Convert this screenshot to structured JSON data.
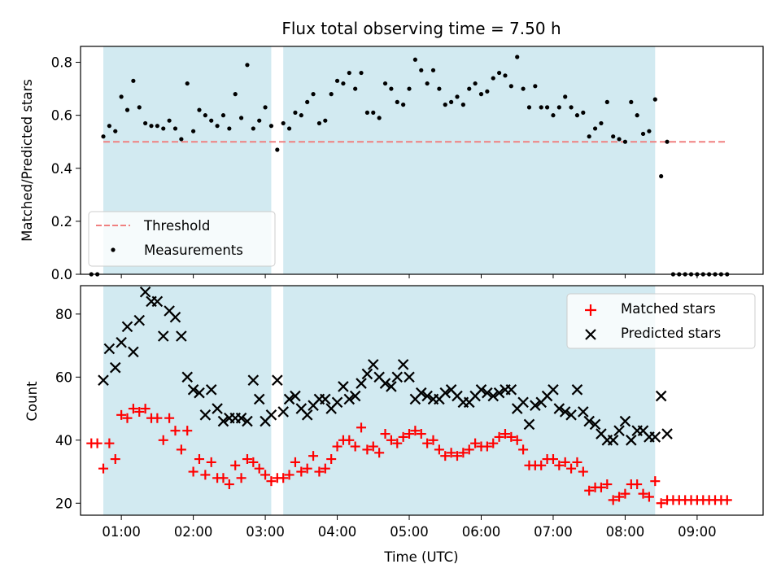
{
  "figure": {
    "title": "Flux total observing time = 7.50 h",
    "xlabel": "Time (UTC)"
  },
  "chart_data": [
    {
      "type": "scatter",
      "name": "ratio",
      "ylabel": "Matched/Predicted stars",
      "xlim": [
        "00:26",
        "09:55"
      ],
      "ylim": [
        0.0,
        0.86
      ],
      "yticks": [
        0.0,
        0.2,
        0.4,
        0.6,
        0.8
      ],
      "threshold": 0.5,
      "shaded_spans": [
        [
          "00:45",
          "03:05"
        ],
        [
          "03:15",
          "08:25"
        ]
      ],
      "legend": {
        "position": "lower-left",
        "entries": [
          "Threshold",
          "Measurements"
        ]
      },
      "colors": {
        "threshold": "#f08080",
        "measurements": "#000000",
        "shade": "#add8e6"
      },
      "x": [
        "00:35",
        "00:40",
        "00:45",
        "00:50",
        "00:55",
        "01:00",
        "01:05",
        "01:10",
        "01:15",
        "01:20",
        "01:25",
        "01:30",
        "01:35",
        "01:40",
        "01:45",
        "01:50",
        "01:55",
        "02:00",
        "02:05",
        "02:10",
        "02:15",
        "02:20",
        "02:25",
        "02:30",
        "02:35",
        "02:40",
        "02:45",
        "02:50",
        "02:55",
        "03:00",
        "03:05",
        "03:10",
        "03:15",
        "03:20",
        "03:25",
        "03:30",
        "03:35",
        "03:40",
        "03:45",
        "03:50",
        "03:55",
        "04:00",
        "04:05",
        "04:10",
        "04:15",
        "04:20",
        "04:25",
        "04:30",
        "04:35",
        "04:40",
        "04:45",
        "04:50",
        "04:55",
        "05:00",
        "05:05",
        "05:10",
        "05:15",
        "05:20",
        "05:25",
        "05:30",
        "05:35",
        "05:40",
        "05:45",
        "05:50",
        "05:55",
        "06:00",
        "06:05",
        "06:10",
        "06:15",
        "06:20",
        "06:25",
        "06:30",
        "06:35",
        "06:40",
        "06:45",
        "06:50",
        "06:55",
        "07:00",
        "07:05",
        "07:10",
        "07:15",
        "07:20",
        "07:25",
        "07:30",
        "07:35",
        "07:40",
        "07:45",
        "07:50",
        "07:55",
        "08:00",
        "08:05",
        "08:10",
        "08:15",
        "08:20",
        "08:25",
        "08:30",
        "08:35",
        "08:40",
        "08:45",
        "08:50",
        "08:55",
        "09:00",
        "09:05",
        "09:10",
        "09:15",
        "09:20",
        "09:25"
      ],
      "y": [
        0.0,
        0.0,
        0.52,
        0.56,
        0.54,
        0.67,
        0.62,
        0.73,
        0.63,
        0.57,
        0.56,
        0.56,
        0.55,
        0.58,
        0.55,
        0.51,
        0.72,
        0.54,
        0.62,
        0.6,
        0.58,
        0.56,
        0.6,
        0.55,
        0.68,
        0.59,
        0.79,
        0.55,
        0.58,
        0.63,
        0.56,
        0.47,
        0.57,
        0.55,
        0.61,
        0.6,
        0.65,
        0.68,
        0.57,
        0.58,
        0.68,
        0.73,
        0.72,
        0.76,
        0.7,
        0.76,
        0.61,
        0.61,
        0.59,
        0.72,
        0.7,
        0.65,
        0.64,
        0.7,
        0.81,
        0.77,
        0.72,
        0.77,
        0.7,
        0.64,
        0.65,
        0.67,
        0.64,
        0.7,
        0.72,
        0.68,
        0.69,
        0.74,
        0.76,
        0.75,
        0.71,
        0.82,
        0.7,
        0.63,
        0.71,
        0.63,
        0.63,
        0.6,
        0.63,
        0.67,
        0.63,
        0.6,
        0.61,
        0.52,
        0.55,
        0.57,
        0.65,
        0.52,
        0.51,
        0.5,
        0.65,
        0.6,
        0.53,
        0.54,
        0.66,
        0.37,
        0.5,
        0.0,
        0.0,
        0.0,
        0.0,
        0.0,
        0.0,
        0.0,
        0.0,
        0.0,
        0.0
      ]
    },
    {
      "type": "scatter",
      "name": "counts",
      "ylabel": "Count",
      "xlim": [
        "00:26",
        "09:55"
      ],
      "ylim": [
        16.2,
        89.0
      ],
      "yticks": [
        20,
        40,
        60,
        80
      ],
      "xticks": [
        "01:00",
        "02:00",
        "03:00",
        "04:00",
        "05:00",
        "06:00",
        "07:00",
        "08:00",
        "09:00"
      ],
      "shaded_spans": [
        [
          "00:45",
          "03:05"
        ],
        [
          "03:15",
          "08:25"
        ]
      ],
      "legend": {
        "position": "top-right",
        "entries": [
          "Matched stars",
          "Predicted stars"
        ]
      },
      "colors": {
        "matched": "#ff0000",
        "predicted": "#000000",
        "shade": "#add8e6"
      },
      "series": [
        {
          "name": "Matched stars",
          "marker": "+",
          "x": [
            "00:35",
            "00:40",
            "00:45",
            "00:50",
            "00:55",
            "01:00",
            "01:05",
            "01:10",
            "01:15",
            "01:20",
            "01:25",
            "01:30",
            "01:35",
            "01:40",
            "01:45",
            "01:50",
            "01:55",
            "02:00",
            "02:05",
            "02:10",
            "02:15",
            "02:20",
            "02:25",
            "02:30",
            "02:35",
            "02:40",
            "02:45",
            "02:50",
            "02:55",
            "03:00",
            "03:05",
            "03:10",
            "03:15",
            "03:20",
            "03:25",
            "03:30",
            "03:35",
            "03:40",
            "03:45",
            "03:50",
            "03:55",
            "04:00",
            "04:05",
            "04:10",
            "04:15",
            "04:20",
            "04:25",
            "04:30",
            "04:35",
            "04:40",
            "04:45",
            "04:50",
            "04:55",
            "05:00",
            "05:05",
            "05:10",
            "05:15",
            "05:20",
            "05:25",
            "05:30",
            "05:35",
            "05:40",
            "05:45",
            "05:50",
            "05:55",
            "06:00",
            "06:05",
            "06:10",
            "06:15",
            "06:20",
            "06:25",
            "06:30",
            "06:35",
            "06:40",
            "06:45",
            "06:50",
            "06:55",
            "07:00",
            "07:05",
            "07:10",
            "07:15",
            "07:20",
            "07:25",
            "07:30",
            "07:35",
            "07:40",
            "07:45",
            "07:50",
            "07:55",
            "08:00",
            "08:05",
            "08:10",
            "08:15",
            "08:20",
            "08:25",
            "08:30",
            "08:35",
            "08:40",
            "08:45",
            "08:50",
            "08:55",
            "09:00",
            "09:05",
            "09:10",
            "09:15",
            "09:20",
            "09:25"
          ],
          "y": [
            39,
            39,
            31,
            39,
            34,
            48,
            47,
            50,
            49,
            50,
            47,
            47,
            40,
            47,
            43,
            37,
            43,
            30,
            34,
            29,
            33,
            28,
            28,
            26,
            32,
            28,
            34,
            33,
            31,
            29,
            27,
            28,
            28,
            29,
            33,
            30,
            31,
            35,
            30,
            31,
            34,
            38,
            40,
            40,
            38,
            44,
            37,
            38,
            36,
            42,
            40,
            39,
            41,
            42,
            43,
            42,
            39,
            40,
            37,
            35,
            36,
            35,
            36,
            37,
            39,
            38,
            38,
            39,
            41,
            42,
            41,
            40,
            37,
            32,
            32,
            32,
            34,
            34,
            32,
            33,
            31,
            33,
            30,
            24,
            25,
            25,
            26,
            21,
            22,
            23,
            26,
            26,
            23,
            22,
            27,
            20,
            21,
            21,
            21,
            21,
            21,
            21,
            21,
            21,
            21,
            21,
            21
          ]
        },
        {
          "name": "Predicted stars",
          "marker": "x",
          "x": [
            "00:45",
            "00:50",
            "00:55",
            "01:00",
            "01:05",
            "01:10",
            "01:15",
            "01:20",
            "01:25",
            "01:30",
            "01:35",
            "01:40",
            "01:45",
            "01:50",
            "01:55",
            "02:00",
            "02:05",
            "02:10",
            "02:15",
            "02:20",
            "02:25",
            "02:30",
            "02:35",
            "02:40",
            "02:45",
            "02:50",
            "02:55",
            "03:00",
            "03:05",
            "03:10",
            "03:15",
            "03:20",
            "03:25",
            "03:30",
            "03:35",
            "03:40",
            "03:45",
            "03:50",
            "03:55",
            "04:00",
            "04:05",
            "04:10",
            "04:15",
            "04:20",
            "04:25",
            "04:30",
            "04:35",
            "04:40",
            "04:45",
            "04:50",
            "04:55",
            "05:00",
            "05:05",
            "05:10",
            "05:15",
            "05:20",
            "05:25",
            "05:30",
            "05:35",
            "05:40",
            "05:45",
            "05:50",
            "05:55",
            "06:00",
            "06:05",
            "06:10",
            "06:15",
            "06:20",
            "06:25",
            "06:30",
            "06:35",
            "06:40",
            "06:45",
            "06:50",
            "06:55",
            "07:00",
            "07:05",
            "07:10",
            "07:15",
            "07:20",
            "07:25",
            "07:30",
            "07:35",
            "07:40",
            "07:45",
            "07:50",
            "07:55",
            "08:00",
            "08:05",
            "08:10",
            "08:15",
            "08:20",
            "08:25",
            "08:30",
            "08:35"
          ],
          "y": [
            59,
            69,
            63,
            71,
            76,
            68,
            78,
            87,
            84,
            84,
            73,
            81,
            79,
            73,
            60,
            56,
            55,
            48,
            56,
            50,
            46,
            47,
            47,
            47,
            46,
            59,
            53,
            46,
            48,
            59,
            49,
            53,
            54,
            50,
            48,
            51,
            53,
            53,
            50,
            52,
            57,
            53,
            54,
            58,
            61,
            64,
            60,
            58,
            57,
            60,
            64,
            60,
            53,
            55,
            54,
            53,
            53,
            55,
            56,
            54,
            52,
            52,
            54,
            56,
            55,
            54,
            55,
            56,
            56,
            50,
            52,
            45,
            51,
            52,
            54,
            56,
            50,
            49,
            48,
            56,
            49,
            46,
            45,
            42,
            40,
            40,
            43,
            46,
            40,
            43,
            43,
            41,
            41,
            54,
            42
          ]
        }
      ]
    }
  ]
}
